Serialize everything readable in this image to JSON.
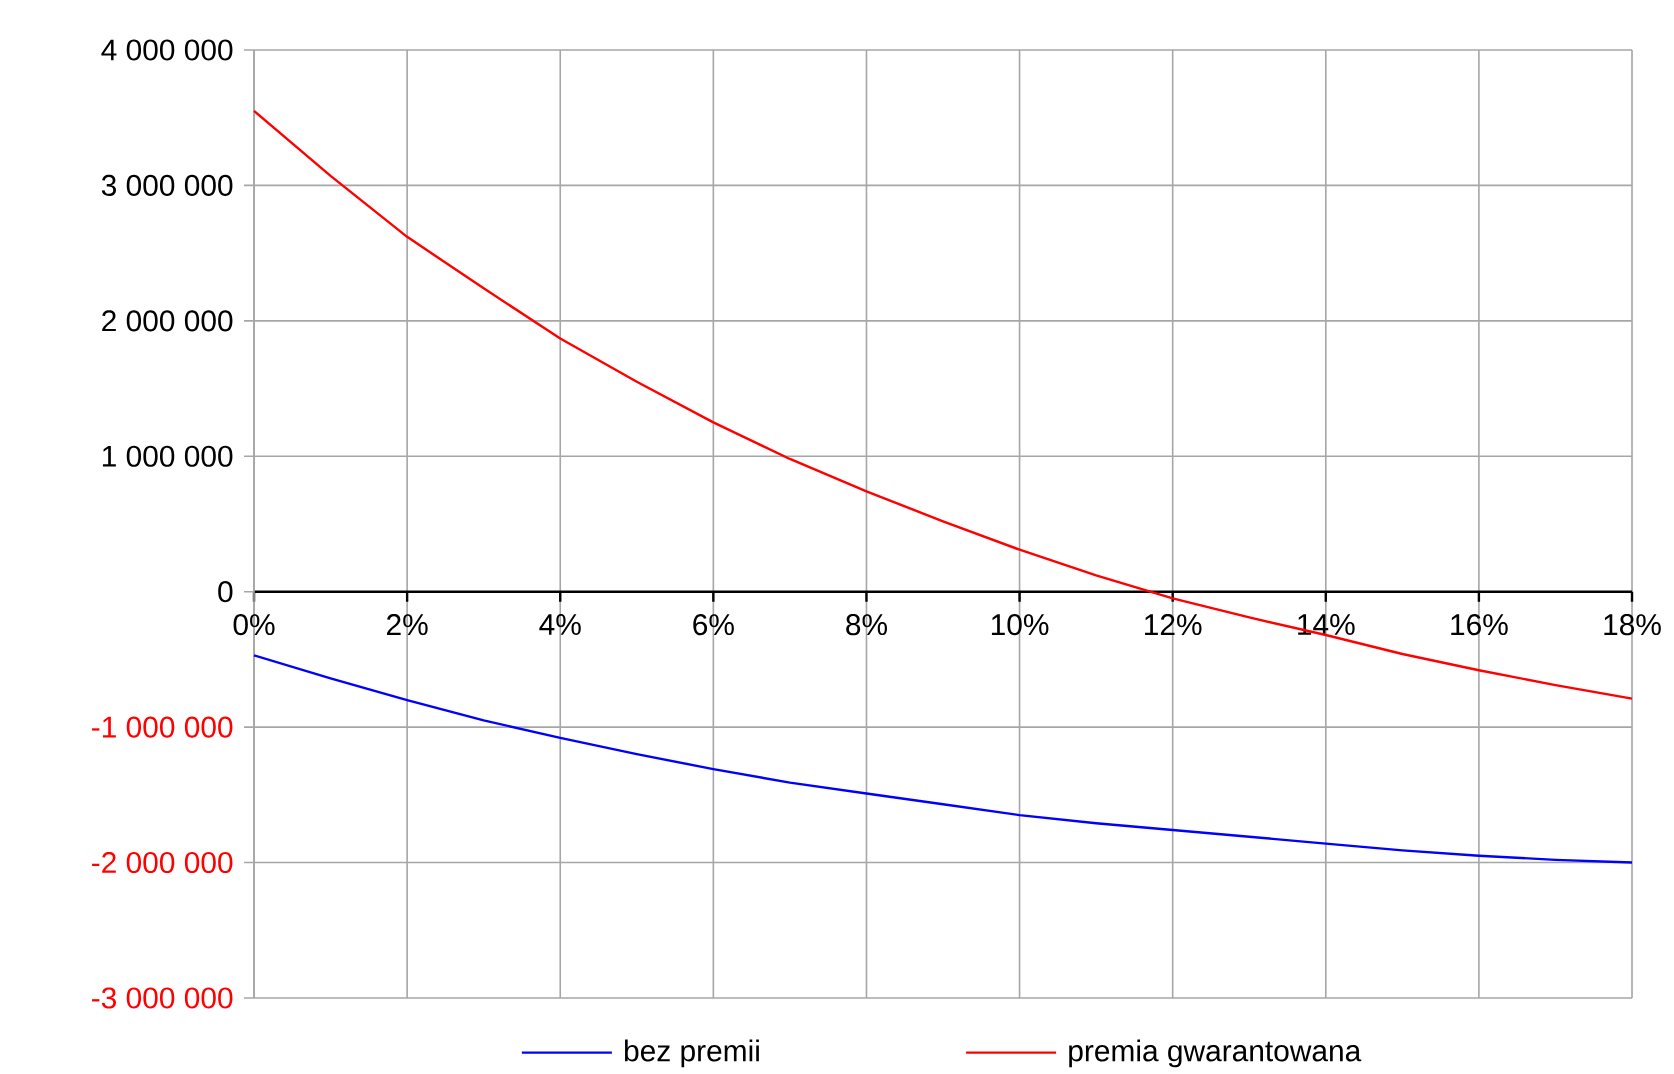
{
  "chart_data": {
    "type": "line",
    "x": [
      0,
      1,
      2,
      3,
      4,
      5,
      6,
      7,
      8,
      9,
      10,
      11,
      12,
      13,
      14,
      15,
      16,
      17,
      18
    ],
    "series": [
      {
        "name": "bez premii",
        "color": "#0000ff",
        "values": [
          -470000,
          -640000,
          -800000,
          -950000,
          -1080000,
          -1200000,
          -1310000,
          -1410000,
          -1490000,
          -1570000,
          -1650000,
          -1710000,
          -1760000,
          -1810000,
          -1860000,
          -1910000,
          -1950000,
          -1980000,
          -2000000
        ]
      },
      {
        "name": "premia gwarantowana",
        "color": "#ff0000",
        "values": [
          3550000,
          3070000,
          2620000,
          2240000,
          1870000,
          1550000,
          1250000,
          980000,
          740000,
          520000,
          310000,
          120000,
          -50000,
          -190000,
          -320000,
          -460000,
          -580000,
          -690000,
          -790000
        ]
      }
    ],
    "xlim": [
      0,
      18
    ],
    "xticks": [
      {
        "value": 0,
        "label": "0%"
      },
      {
        "value": 2,
        "label": "2%"
      },
      {
        "value": 4,
        "label": "4%"
      },
      {
        "value": 6,
        "label": "6%"
      },
      {
        "value": 8,
        "label": "8%"
      },
      {
        "value": 10,
        "label": "10%"
      },
      {
        "value": 12,
        "label": "12%"
      },
      {
        "value": 14,
        "label": "14%"
      },
      {
        "value": 16,
        "label": "16%"
      },
      {
        "value": 18,
        "label": "18%"
      }
    ],
    "ylim": [
      -3000000,
      4000000
    ],
    "yticks": [
      {
        "value": -3000000,
        "label": "-3 000 000"
      },
      {
        "value": -2000000,
        "label": "-2 000 000"
      },
      {
        "value": -1000000,
        "label": "-1 000 000"
      },
      0,
      {
        "value": 1000000,
        "label": "1 000 000"
      },
      {
        "value": 2000000,
        "label": "2 000 000"
      },
      {
        "value": 3000000,
        "label": "3 000 000"
      },
      {
        "value": 4000000,
        "label": "4 000 000"
      }
    ],
    "grid": true,
    "legend": "bottom",
    "marker": "none",
    "line_style": "solid"
  }
}
